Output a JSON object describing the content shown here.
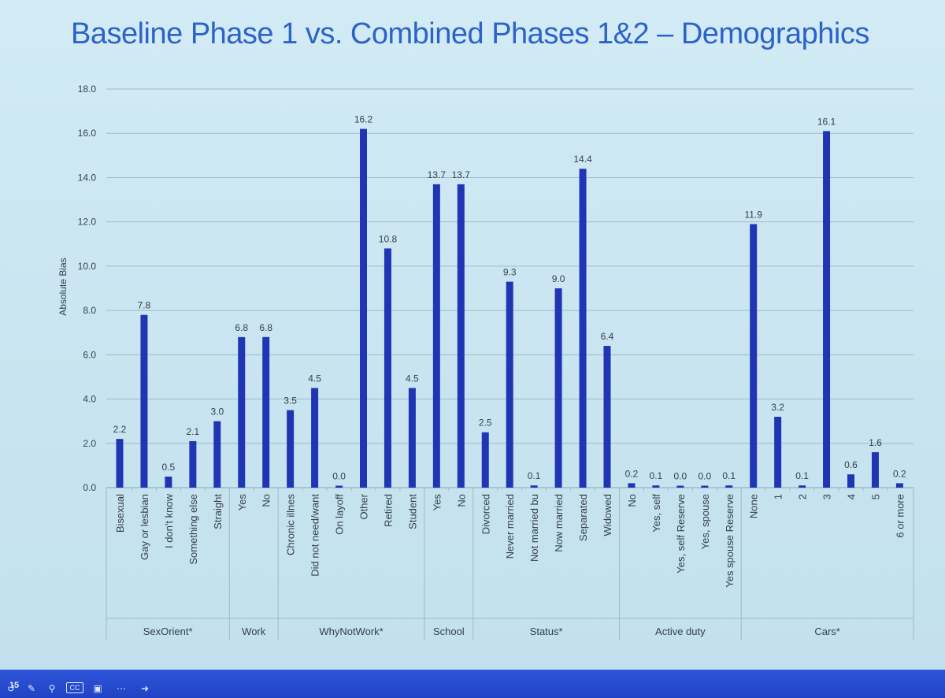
{
  "slide": {
    "title": "Baseline Phase 1 vs. Combined Phases 1&2 – Demographics"
  },
  "colors": {
    "bar": "#1f35b3",
    "grid": "#9fb9c6",
    "text": "#333f48",
    "title": "#2c63c9"
  },
  "chart_data": {
    "type": "bar",
    "ylabel": "Absolute Bias",
    "xlabel": "",
    "ylim": [
      0,
      18
    ],
    "yticks": [
      "0.0",
      "2.0",
      "4.0",
      "6.0",
      "8.0",
      "10.0",
      "12.0",
      "14.0",
      "16.0",
      "18.0"
    ],
    "grid": true,
    "groups": [
      {
        "name": "SexOrient*",
        "categories": [
          "Bisexual",
          "Gay or lesbian",
          "I don't know",
          "Something else",
          "Straight"
        ],
        "values": [
          2.2,
          7.8,
          0.5,
          2.1,
          3.0
        ],
        "labels": [
          "2.2",
          "7.8",
          "0.5",
          "2.1",
          "3.0"
        ]
      },
      {
        "name": "Work",
        "categories": [
          "Yes",
          "No"
        ],
        "values": [
          6.8,
          6.8
        ],
        "labels": [
          "6.8",
          "6.8"
        ]
      },
      {
        "name": "WhyNotWork*",
        "categories": [
          "Chronic illnes",
          "Did not need/want",
          "On layoff",
          "Other",
          "Retired",
          "Student"
        ],
        "values": [
          3.5,
          4.5,
          0.0,
          16.2,
          10.8,
          4.5
        ],
        "labels": [
          "3.5",
          "4.5",
          "0.0",
          "16.2",
          "10.8",
          "4.5"
        ]
      },
      {
        "name": "School",
        "categories": [
          "Yes",
          "No"
        ],
        "values": [
          13.7,
          13.7
        ],
        "labels": [
          "13.7",
          "13.7"
        ]
      },
      {
        "name": "Status*",
        "categories": [
          "Divorced",
          "Never married",
          "Not married bu",
          "Now married",
          "Separated",
          "Widowed"
        ],
        "values": [
          2.5,
          9.3,
          0.1,
          9.0,
          14.4,
          6.4
        ],
        "labels": [
          "2.5",
          "9.3",
          "0.1",
          "9.0",
          "14.4",
          "6.4"
        ]
      },
      {
        "name": "Active duty",
        "categories": [
          "No",
          "Yes, self",
          "Yes, self Reserve",
          "Yes, spouse",
          "Yes spouse Reserve"
        ],
        "values": [
          0.2,
          0.1,
          0.0,
          0.0,
          0.1
        ],
        "labels": [
          "0.2",
          "0.1",
          "0.0",
          "0.0",
          "0.1"
        ]
      },
      {
        "name": "Cars*",
        "categories": [
          "None",
          "1",
          "2",
          "3",
          "4",
          "5",
          "6 or more"
        ],
        "values": [
          11.9,
          3.2,
          0.1,
          16.1,
          0.6,
          1.6,
          0.2
        ],
        "labels": [
          "11.9",
          "3.2",
          "0.1",
          "16.1",
          "0.6",
          "1.6",
          "0.2"
        ]
      }
    ]
  },
  "toolbar": {
    "slide_number": "15",
    "icons": [
      "back-arrow-icon",
      "pen-icon",
      "zoom-icon",
      "captions-icon",
      "video-off-icon",
      "more-icon",
      "forward-arrow-icon"
    ]
  }
}
